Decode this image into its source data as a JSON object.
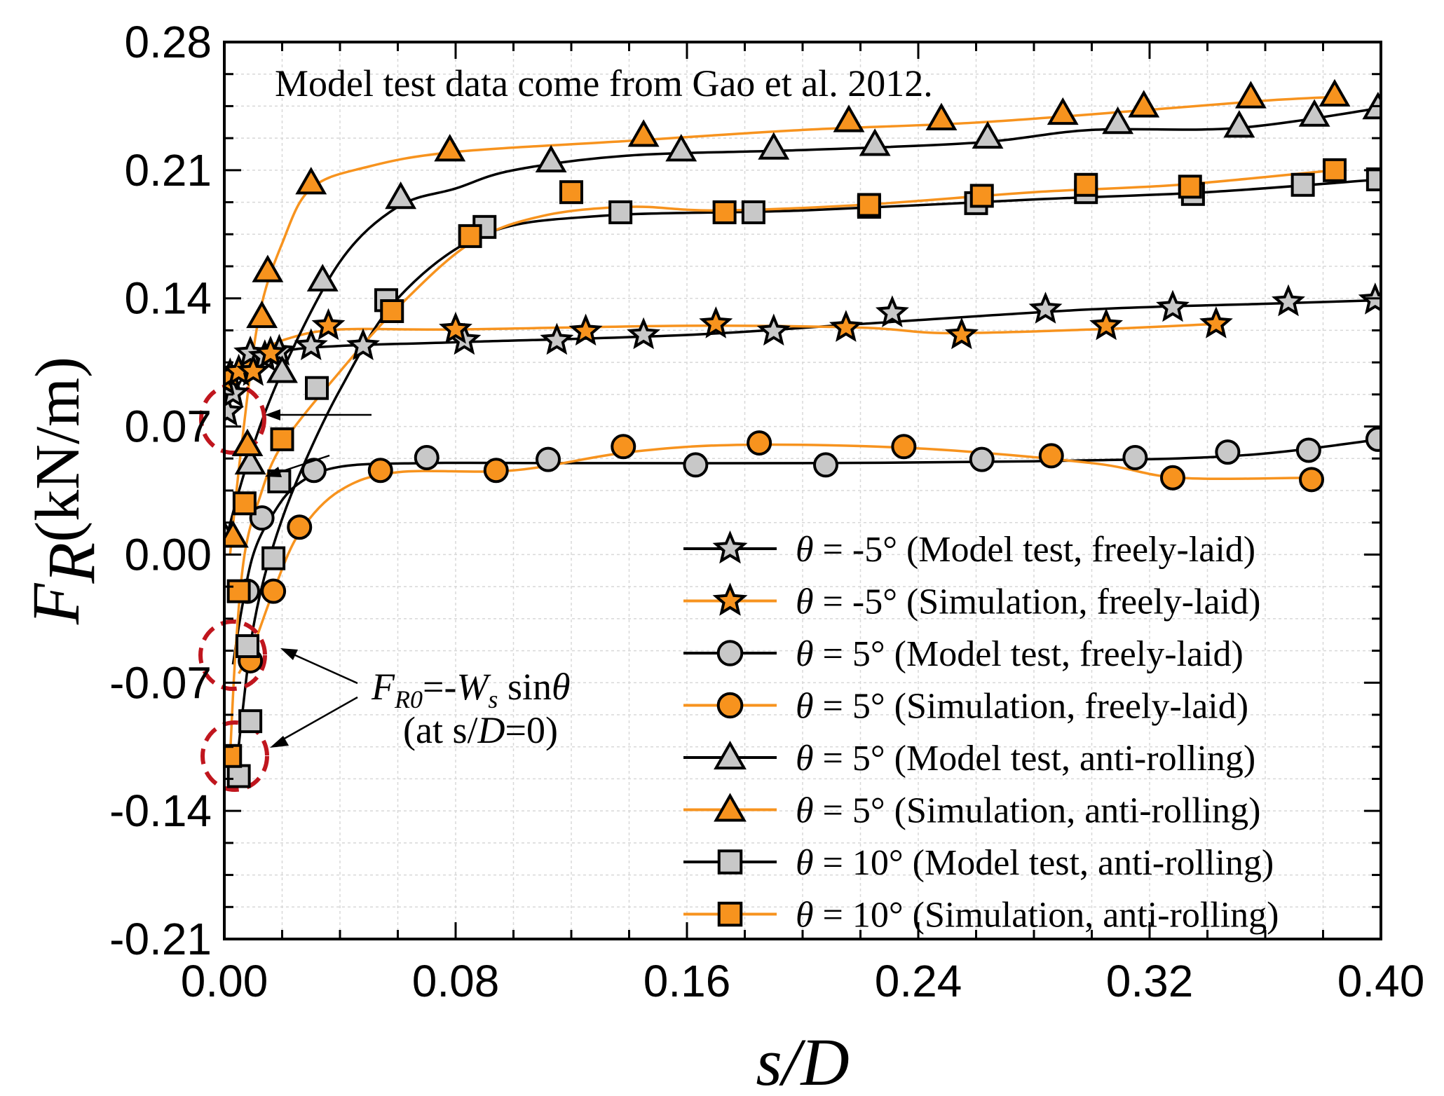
{
  "chart_data": {
    "type": "line",
    "annotation_top": "Model test data come from Gao et al. 2012.",
    "xlabel": "s/D",
    "ylabel_symbol": "F",
    "ylabel_sub": "R",
    "ylabel_unit": "(kN/m)",
    "xlim": [
      0.0,
      0.4
    ],
    "ylim": [
      -0.21,
      0.28
    ],
    "xticks": [
      "0.00",
      "0.08",
      "0.16",
      "0.24",
      "0.32",
      "0.40"
    ],
    "yticks": [
      "0.28",
      "0.21",
      "0.14",
      "0.07",
      "0.00",
      "-0.07",
      "-0.14",
      "-0.21"
    ],
    "annotation_formula": {
      "lhs": "F",
      "lhs_sub": "R0",
      "eq": "=-",
      "w": "W",
      "w_sub": "s",
      "func": " sin",
      "theta": "θ",
      "line2_prefix": "(at s/",
      "line2_d": "D",
      "line2_suffix": "=0)"
    },
    "colors": {
      "model_fill": "#c8c8c8",
      "sim_fill": "#f7931e",
      "model_line": "#000000",
      "sim_line": "#f7931e",
      "circle": "#c0161e"
    },
    "series": [
      {
        "label_prefix": "θ",
        "label_rest": " = -5° (Model test, freely-laid)",
        "marker": "star",
        "kind": "model",
        "points": [
          [
            0.001,
            0.078
          ],
          [
            0.003,
            0.088
          ],
          [
            0.005,
            0.1
          ],
          [
            0.009,
            0.11
          ],
          [
            0.014,
            0.108
          ],
          [
            0.019,
            0.111
          ],
          [
            0.03,
            0.114
          ],
          [
            0.048,
            0.114
          ],
          [
            0.083,
            0.117
          ],
          [
            0.115,
            0.117
          ],
          [
            0.145,
            0.12
          ],
          [
            0.19,
            0.122
          ],
          [
            0.231,
            0.132
          ],
          [
            0.284,
            0.134
          ],
          [
            0.328,
            0.135
          ],
          [
            0.368,
            0.138
          ],
          [
            0.398,
            0.139
          ]
        ],
        "curve": [
          [
            0.0,
            0.075
          ],
          [
            0.004,
            0.09
          ],
          [
            0.01,
            0.104
          ],
          [
            0.02,
            0.111
          ],
          [
            0.04,
            0.114
          ],
          [
            0.08,
            0.116
          ],
          [
            0.16,
            0.12
          ],
          [
            0.22,
            0.126
          ],
          [
            0.3,
            0.134
          ],
          [
            0.36,
            0.137
          ],
          [
            0.4,
            0.139
          ]
        ]
      },
      {
        "label_prefix": "θ",
        "label_rest": " = -5° (Simulation, freely-laid)",
        "marker": "star",
        "kind": "sim",
        "points": [
          [
            0.0,
            0.095
          ],
          [
            0.002,
            0.098
          ],
          [
            0.005,
            0.1
          ],
          [
            0.01,
            0.1
          ],
          [
            0.016,
            0.11
          ],
          [
            0.036,
            0.125
          ],
          [
            0.08,
            0.123
          ],
          [
            0.125,
            0.122
          ],
          [
            0.17,
            0.126
          ],
          [
            0.215,
            0.124
          ],
          [
            0.255,
            0.12
          ],
          [
            0.305,
            0.125
          ],
          [
            0.343,
            0.126
          ]
        ],
        "curve": [
          [
            0.0,
            0.085
          ],
          [
            0.005,
            0.098
          ],
          [
            0.012,
            0.11
          ],
          [
            0.022,
            0.118
          ],
          [
            0.04,
            0.123
          ],
          [
            0.08,
            0.123
          ],
          [
            0.16,
            0.125
          ],
          [
            0.22,
            0.124
          ],
          [
            0.25,
            0.121
          ],
          [
            0.3,
            0.123
          ],
          [
            0.343,
            0.126
          ]
        ]
      },
      {
        "label_prefix": "θ",
        "label_rest": " = 5° (Model test, freely-laid)",
        "marker": "circle",
        "kind": "model",
        "points": [
          [
            0.008,
            -0.02
          ],
          [
            0.013,
            0.02
          ],
          [
            0.031,
            0.046
          ],
          [
            0.07,
            0.053
          ],
          [
            0.112,
            0.052
          ],
          [
            0.163,
            0.049
          ],
          [
            0.208,
            0.049
          ],
          [
            0.262,
            0.052
          ],
          [
            0.315,
            0.053
          ],
          [
            0.347,
            0.056
          ],
          [
            0.375,
            0.057
          ],
          [
            0.399,
            0.063
          ]
        ],
        "curve": [
          [
            0.003,
            -0.06
          ],
          [
            0.006,
            -0.03
          ],
          [
            0.01,
            0.0
          ],
          [
            0.016,
            0.02
          ],
          [
            0.025,
            0.038
          ],
          [
            0.04,
            0.048
          ],
          [
            0.07,
            0.05
          ],
          [
            0.12,
            0.05
          ],
          [
            0.2,
            0.05
          ],
          [
            0.28,
            0.051
          ],
          [
            0.35,
            0.054
          ],
          [
            0.4,
            0.063
          ]
        ]
      },
      {
        "label_prefix": "θ",
        "label_rest": " = 5° (Simulation, freely-laid)",
        "marker": "circle",
        "kind": "sim",
        "points": [
          [
            0.009,
            -0.058
          ],
          [
            0.017,
            -0.02
          ],
          [
            0.026,
            0.015
          ],
          [
            0.054,
            0.046
          ],
          [
            0.094,
            0.046
          ],
          [
            0.138,
            0.059
          ],
          [
            0.185,
            0.061
          ],
          [
            0.235,
            0.059
          ],
          [
            0.286,
            0.054
          ],
          [
            0.328,
            0.042
          ],
          [
            0.376,
            0.041
          ]
        ],
        "curve": [
          [
            0.005,
            -0.065
          ],
          [
            0.01,
            -0.05
          ],
          [
            0.017,
            -0.02
          ],
          [
            0.026,
            0.012
          ],
          [
            0.04,
            0.035
          ],
          [
            0.06,
            0.045
          ],
          [
            0.1,
            0.046
          ],
          [
            0.14,
            0.056
          ],
          [
            0.18,
            0.06
          ],
          [
            0.24,
            0.058
          ],
          [
            0.3,
            0.05
          ],
          [
            0.33,
            0.042
          ],
          [
            0.376,
            0.042
          ]
        ]
      },
      {
        "label_prefix": "θ",
        "label_rest": " = 5° (Model test, anti-rolling)",
        "marker": "triangle",
        "kind": "model",
        "points": [
          [
            0.0,
            0.01
          ],
          [
            0.009,
            0.05
          ],
          [
            0.02,
            0.1
          ],
          [
            0.034,
            0.15
          ],
          [
            0.061,
            0.195
          ],
          [
            0.113,
            0.215
          ],
          [
            0.158,
            0.221
          ],
          [
            0.19,
            0.222
          ],
          [
            0.225,
            0.224
          ],
          [
            0.264,
            0.228
          ],
          [
            0.309,
            0.236
          ],
          [
            0.351,
            0.234
          ],
          [
            0.377,
            0.24
          ],
          [
            0.399,
            0.244
          ]
        ],
        "curve": [
          [
            0.0,
            0.005
          ],
          [
            0.008,
            0.05
          ],
          [
            0.02,
            0.1
          ],
          [
            0.04,
            0.16
          ],
          [
            0.06,
            0.19
          ],
          [
            0.08,
            0.2
          ],
          [
            0.1,
            0.21
          ],
          [
            0.14,
            0.218
          ],
          [
            0.2,
            0.221
          ],
          [
            0.26,
            0.225
          ],
          [
            0.3,
            0.232
          ],
          [
            0.35,
            0.233
          ],
          [
            0.4,
            0.244
          ]
        ]
      },
      {
        "label_prefix": "θ",
        "label_rest": " = 5° (Simulation, anti-rolling)",
        "marker": "triangle",
        "kind": "sim",
        "points": [
          [
            0.003,
            0.01
          ],
          [
            0.008,
            0.06
          ],
          [
            0.013,
            0.13
          ],
          [
            0.015,
            0.155
          ],
          [
            0.03,
            0.203
          ],
          [
            0.078,
            0.221
          ],
          [
            0.145,
            0.229
          ],
          [
            0.216,
            0.237
          ],
          [
            0.248,
            0.238
          ],
          [
            0.29,
            0.241
          ],
          [
            0.318,
            0.245
          ],
          [
            0.355,
            0.25
          ],
          [
            0.384,
            0.251
          ]
        ],
        "curve": [
          [
            0.002,
            0.0
          ],
          [
            0.006,
            0.06
          ],
          [
            0.012,
            0.13
          ],
          [
            0.02,
            0.17
          ],
          [
            0.03,
            0.2
          ],
          [
            0.05,
            0.212
          ],
          [
            0.08,
            0.22
          ],
          [
            0.14,
            0.226
          ],
          [
            0.2,
            0.232
          ],
          [
            0.26,
            0.236
          ],
          [
            0.32,
            0.243
          ],
          [
            0.36,
            0.248
          ],
          [
            0.384,
            0.25
          ]
        ]
      },
      {
        "label_prefix": "θ",
        "label_rest": " = 10° (Model test, anti-rolling)",
        "marker": "square",
        "kind": "model",
        "points": [
          [
            0.005,
            -0.121
          ],
          [
            0.009,
            -0.091
          ],
          [
            0.008,
            -0.05
          ],
          [
            0.017,
            -0.002
          ],
          [
            0.019,
            0.04
          ],
          [
            0.032,
            0.091
          ],
          [
            0.056,
            0.139
          ],
          [
            0.09,
            0.179
          ],
          [
            0.137,
            0.187
          ],
          [
            0.183,
            0.187
          ],
          [
            0.223,
            0.19
          ],
          [
            0.26,
            0.192
          ],
          [
            0.298,
            0.198
          ],
          [
            0.335,
            0.197
          ],
          [
            0.373,
            0.202
          ],
          [
            0.399,
            0.205
          ]
        ],
        "curve": [
          [
            0.004,
            -0.12
          ],
          [
            0.006,
            -0.09
          ],
          [
            0.01,
            -0.04
          ],
          [
            0.016,
            0.0
          ],
          [
            0.025,
            0.04
          ],
          [
            0.04,
            0.09
          ],
          [
            0.06,
            0.14
          ],
          [
            0.09,
            0.175
          ],
          [
            0.13,
            0.185
          ],
          [
            0.2,
            0.188
          ],
          [
            0.28,
            0.194
          ],
          [
            0.34,
            0.198
          ],
          [
            0.4,
            0.205
          ]
        ]
      },
      {
        "label_prefix": "θ",
        "label_rest": " = 10° (Simulation, anti-rolling)",
        "marker": "square",
        "kind": "sim",
        "points": [
          [
            0.002,
            -0.11
          ],
          [
            0.005,
            -0.02
          ],
          [
            0.007,
            0.028
          ],
          [
            0.02,
            0.063
          ],
          [
            0.058,
            0.133
          ],
          [
            0.085,
            0.174
          ],
          [
            0.12,
            0.198
          ],
          [
            0.173,
            0.187
          ],
          [
            0.223,
            0.191
          ],
          [
            0.262,
            0.196
          ],
          [
            0.298,
            0.202
          ],
          [
            0.334,
            0.201
          ],
          [
            0.384,
            0.21
          ]
        ],
        "curve": [
          [
            0.002,
            -0.11
          ],
          [
            0.004,
            -0.05
          ],
          [
            0.007,
            0.0
          ],
          [
            0.012,
            0.03
          ],
          [
            0.02,
            0.06
          ],
          [
            0.04,
            0.1
          ],
          [
            0.06,
            0.135
          ],
          [
            0.085,
            0.17
          ],
          [
            0.11,
            0.185
          ],
          [
            0.14,
            0.19
          ],
          [
            0.17,
            0.188
          ],
          [
            0.22,
            0.191
          ],
          [
            0.28,
            0.198
          ],
          [
            0.33,
            0.202
          ],
          [
            0.384,
            0.21
          ]
        ]
      }
    ]
  }
}
